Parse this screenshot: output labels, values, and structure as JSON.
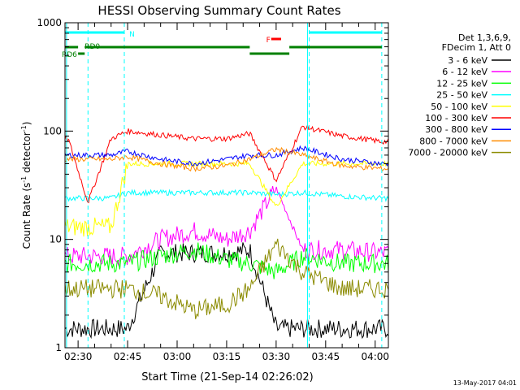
{
  "chart_data": {
    "type": "line",
    "title": "HESSI Observing Summary Count Rates",
    "xlabel": "Start Time (21-Sep-14 02:26:02)",
    "ylabel_main": "Count Rate (s",
    "ylabel_sup1": "-1",
    "ylabel_mid": " detector",
    "ylabel_sup2": "-1",
    "ylabel_end": ")",
    "footer_date": "13-May-2017 04:01",
    "y_scale": "log",
    "ylim": [
      1,
      1000
    ],
    "xlim": [
      "02:26:02",
      "04:04:00"
    ],
    "x_ticks": [
      "02:30",
      "02:45",
      "03:00",
      "03:15",
      "03:30",
      "03:45",
      "04:00"
    ],
    "y_ticks": [
      "1",
      "10",
      "100",
      "1000"
    ],
    "legend_header": [
      "Det 1,3,6,9,",
      "FDecim 1, Att 0"
    ],
    "series": [
      {
        "name": "3 - 6 keV",
        "color": "#000000",
        "values": [
          1.5,
          1.5,
          1.5,
          1.5,
          7.5,
          7.5,
          7.5,
          8.0,
          1.5,
          1.5,
          1.5,
          1.5
        ]
      },
      {
        "name": "6 - 12 keV",
        "color": "#ff00ff",
        "values": [
          7.0,
          7.0,
          7.0,
          7.0,
          10.0,
          12.0,
          10.0,
          12.0,
          30.0,
          8.0,
          8.0,
          7.5
        ]
      },
      {
        "name": "12 - 25 keV",
        "color": "#00ff00",
        "values": [
          6.0,
          6.0,
          6.0,
          6.0,
          7.0,
          8.0,
          6.5,
          6.0,
          5.0,
          7.0,
          6.0,
          6.0
        ]
      },
      {
        "name": "25 - 50 keV",
        "color": "#00ffff",
        "values": [
          24.0,
          24.0,
          24.0,
          27.0,
          27.0,
          27.0,
          27.0,
          27.0,
          26.0,
          27.0,
          25.0,
          24.0
        ]
      },
      {
        "name": "50 - 100 keV",
        "color": "#ffff00",
        "values": [
          13.0,
          13.0,
          13.0,
          50.0,
          50.0,
          50.0,
          50.0,
          50.0,
          20.0,
          50.0,
          50.0,
          50.0
        ]
      },
      {
        "name": "100 - 300 keV",
        "color": "#ff0000",
        "values": [
          85.0,
          22.0,
          85.0,
          100.0,
          92.0,
          85.0,
          85.0,
          95.0,
          35.0,
          110.0,
          90.0,
          80.0
        ]
      },
      {
        "name": "300 - 800 keV",
        "color": "#0000ff",
        "values": [
          60.0,
          60.0,
          60.0,
          65.0,
          55.0,
          50.0,
          55.0,
          60.0,
          60.0,
          70.0,
          55.0,
          50.0
        ]
      },
      {
        "name": "800 - 7000 keV",
        "color": "#ff8c00",
        "values": [
          55.0,
          55.0,
          55.0,
          58.0,
          50.0,
          45.0,
          48.0,
          55.0,
          68.0,
          60.0,
          48.0,
          45.0
        ]
      },
      {
        "name": "7000 - 20000 keV",
        "color": "#8b8b00",
        "values": [
          3.5,
          3.5,
          3.5,
          3.5,
          3.0,
          2.2,
          2.5,
          3.5,
          9.0,
          5.0,
          3.5,
          3.5
        ]
      }
    ],
    "x": [
      "02:27",
      "02:33",
      "02:40",
      "02:45",
      "02:55",
      "03:05",
      "03:15",
      "03:22",
      "03:30",
      "03:38",
      "03:50",
      "04:02"
    ],
    "annotations": [
      {
        "label": "N",
        "color": "#00ffff"
      },
      {
        "label": "F",
        "color": "#ff0000"
      },
      {
        "label": "RD6",
        "color": "#008000"
      },
      {
        "label": "RD0",
        "color": "#008000"
      }
    ]
  }
}
